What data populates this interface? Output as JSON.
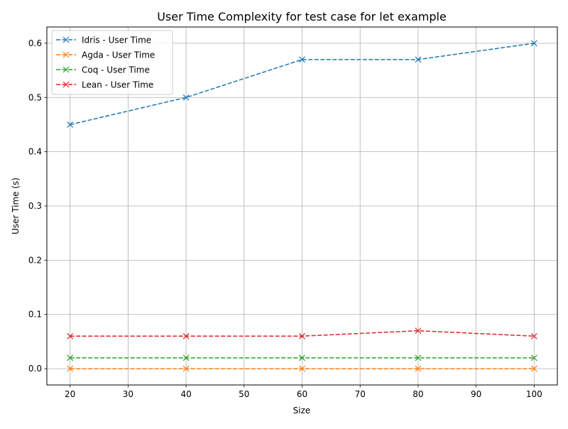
{
  "chart_data": {
    "type": "line",
    "title": "User Time Complexity for test case for let example",
    "xlabel": "Size",
    "ylabel": "User Time (s)",
    "x": [
      20,
      40,
      60,
      80,
      100
    ],
    "xlim": [
      16,
      104
    ],
    "ylim": [
      -0.03,
      0.63
    ],
    "xticks": [
      20,
      30,
      40,
      50,
      60,
      70,
      80,
      90,
      100
    ],
    "yticks": [
      0.0,
      0.1,
      0.2,
      0.3,
      0.4,
      0.5,
      0.6
    ],
    "xtick_labels": [
      "20",
      "30",
      "40",
      "50",
      "60",
      "70",
      "80",
      "90",
      "100"
    ],
    "ytick_labels": [
      "0.0",
      "0.1",
      "0.2",
      "0.3",
      "0.4",
      "0.5",
      "0.6"
    ],
    "grid": true,
    "legend_position": "top-left",
    "marker": "x",
    "line_style": "dashed",
    "series": [
      {
        "name": "Idris - User Time",
        "color": "#1f77b4",
        "values": [
          0.45,
          0.5,
          0.57,
          0.57,
          0.6
        ]
      },
      {
        "name": "Agda - User Time",
        "color": "#ff7f0e",
        "values": [
          0.0,
          0.0,
          0.0,
          0.0,
          0.0
        ]
      },
      {
        "name": "Coq - User Time",
        "color": "#2ca02c",
        "values": [
          0.02,
          0.02,
          0.02,
          0.02,
          0.02
        ]
      },
      {
        "name": "Lean - User Time",
        "color": "#d62728",
        "values": [
          0.06,
          0.06,
          0.06,
          0.07,
          0.06
        ]
      }
    ]
  }
}
